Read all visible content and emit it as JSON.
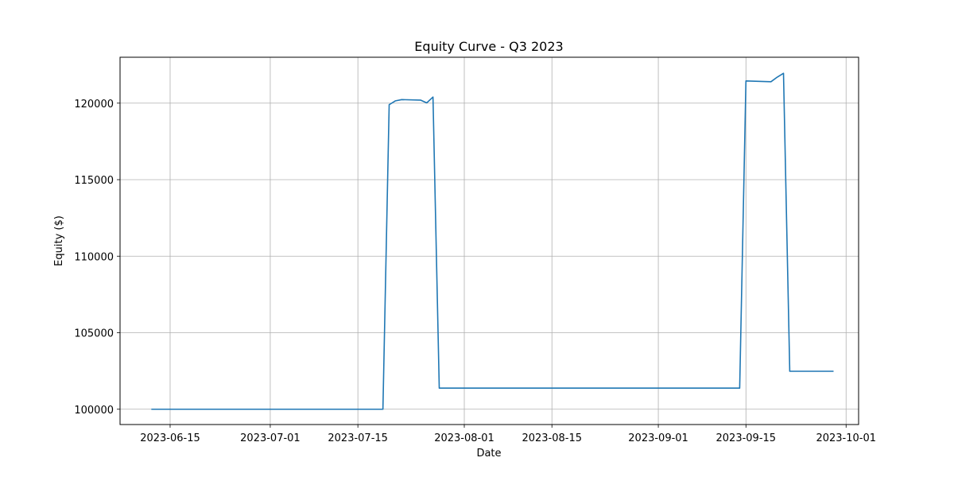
{
  "chart_data": {
    "type": "line",
    "title": "Equity Curve - Q3 2023",
    "xlabel": "Date",
    "ylabel": "Equity ($)",
    "grid": true,
    "xlim": [
      "2023-06-07",
      "2023-10-03"
    ],
    "ylim": [
      99000,
      123000
    ],
    "x_ticks": [
      "2023-06-15",
      "2023-07-01",
      "2023-07-15",
      "2023-08-01",
      "2023-08-15",
      "2023-09-01",
      "2023-09-15",
      "2023-10-01"
    ],
    "y_ticks": [
      100000,
      105000,
      110000,
      115000,
      120000
    ],
    "series": [
      {
        "color": "#1f77b4",
        "points": [
          [
            "2023-06-12",
            100000
          ],
          [
            "2023-07-19",
            100000
          ],
          [
            "2023-07-20",
            119900
          ],
          [
            "2023-07-21",
            120150
          ],
          [
            "2023-07-22",
            120230
          ],
          [
            "2023-07-25",
            120200
          ],
          [
            "2023-07-26",
            120020
          ],
          [
            "2023-07-27",
            120400
          ],
          [
            "2023-07-28",
            101380
          ],
          [
            "2023-09-14",
            101380
          ],
          [
            "2023-09-15",
            121450
          ],
          [
            "2023-09-19",
            121400
          ],
          [
            "2023-09-20",
            121700
          ],
          [
            "2023-09-21",
            121950
          ],
          [
            "2023-09-22",
            102480
          ],
          [
            "2023-09-29",
            102480
          ]
        ]
      }
    ]
  }
}
